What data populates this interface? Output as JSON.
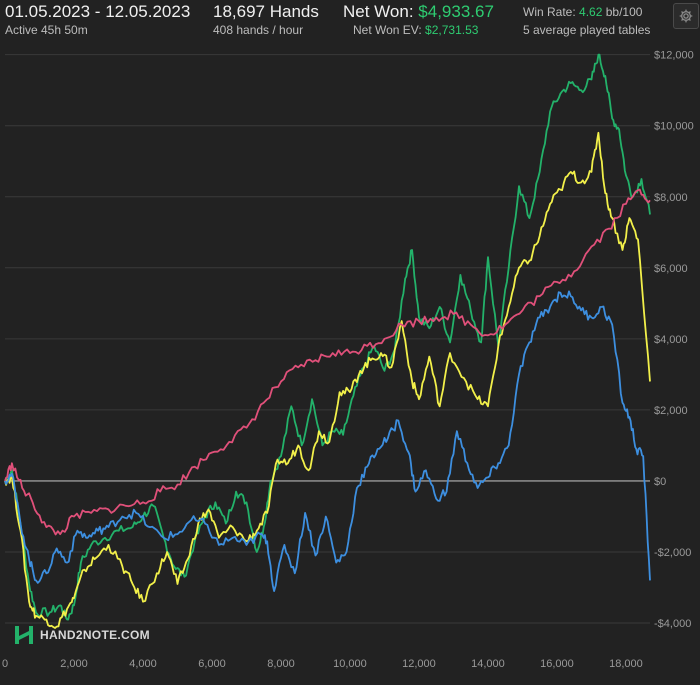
{
  "header": {
    "date_range": "01.05.2023 - 12.05.2023",
    "active_time": "Active 45h 50m",
    "hands": "18,697 Hands",
    "hands_per_hour": "408 hands / hour",
    "net_won_label": "Net Won:",
    "net_won_value": "$4,933.67",
    "net_won_ev_label": "Net Won  EV:",
    "net_won_ev_value": "$2,731.53",
    "win_rate_label": "Win Rate:",
    "win_rate_value": "4.62",
    "win_rate_unit": "bb/100",
    "tables": "5 average played tables"
  },
  "icons": {
    "settings": "gear-icon",
    "logo": "hand2note-logo-icon"
  },
  "logo": {
    "text": "HAND2NOTE.COM"
  },
  "colors": {
    "background": "#222222",
    "green": "#23b26a",
    "yellow": "#f2f04a",
    "pink": "#e0507a",
    "blue": "#3d8fe0",
    "zero_line": "#9a9a9a",
    "grid": "#3a3a3a"
  },
  "chart_data": {
    "type": "line",
    "xlim": [
      0,
      18697
    ],
    "ylim": [
      -4900,
      12300
    ],
    "x_ticks": [
      0,
      2000,
      4000,
      6000,
      8000,
      10000,
      12000,
      14000,
      16000,
      18000
    ],
    "x_tick_labels": [
      "0",
      "2,000",
      "4,000",
      "6,000",
      "8,000",
      "10,000",
      "12,000",
      "14,000",
      "16,000",
      "18,000"
    ],
    "y_ticks": [
      12000,
      10000,
      8000,
      6000,
      4000,
      2000,
      0,
      -2000,
      -4000
    ],
    "y_tick_labels": [
      "$12,000",
      "$10,000",
      "$8,000",
      "$6,000",
      "$4,000",
      "$2,000",
      "$0",
      "-$2,000",
      "-$4,000"
    ],
    "grid": true,
    "series": [
      {
        "color": "#23b26a",
        "points": [
          [
            0,
            0
          ],
          [
            200,
            300
          ],
          [
            450,
            -1200
          ],
          [
            700,
            -2900
          ],
          [
            900,
            -3700
          ],
          [
            1300,
            -3700
          ],
          [
            1600,
            -3500
          ],
          [
            1800,
            -3900
          ],
          [
            2000,
            -3500
          ],
          [
            2200,
            -2300
          ],
          [
            2500,
            -1800
          ],
          [
            2900,
            -1600
          ],
          [
            3300,
            -1400
          ],
          [
            3700,
            -1300
          ],
          [
            4000,
            -1000
          ],
          [
            4300,
            -700
          ],
          [
            4600,
            -1600
          ],
          [
            4900,
            -2400
          ],
          [
            5200,
            -2700
          ],
          [
            5500,
            -1700
          ],
          [
            5800,
            -1000
          ],
          [
            6100,
            -600
          ],
          [
            6400,
            -1200
          ],
          [
            6700,
            -300
          ],
          [
            7000,
            -600
          ],
          [
            7300,
            -2000
          ],
          [
            7500,
            -1300
          ],
          [
            7700,
            0
          ],
          [
            8000,
            700
          ],
          [
            8300,
            2100
          ],
          [
            8600,
            1000
          ],
          [
            8900,
            2300
          ],
          [
            9200,
            1000
          ],
          [
            9500,
            1400
          ],
          [
            9800,
            1300
          ],
          [
            10100,
            2400
          ],
          [
            10400,
            3200
          ],
          [
            10700,
            3800
          ],
          [
            11000,
            3100
          ],
          [
            11300,
            3700
          ],
          [
            11600,
            5700
          ],
          [
            11800,
            6500
          ],
          [
            12000,
            4600
          ],
          [
            12300,
            4300
          ],
          [
            12600,
            4900
          ],
          [
            12900,
            3900
          ],
          [
            13200,
            5800
          ],
          [
            13500,
            4800
          ],
          [
            13800,
            3900
          ],
          [
            14000,
            6300
          ],
          [
            14300,
            3800
          ],
          [
            14600,
            6000
          ],
          [
            14900,
            8300
          ],
          [
            15200,
            7400
          ],
          [
            15500,
            8700
          ],
          [
            15800,
            10400
          ],
          [
            16100,
            10900
          ],
          [
            16400,
            11200
          ],
          [
            16700,
            11000
          ],
          [
            17000,
            11300
          ],
          [
            17200,
            12000
          ],
          [
            17400,
            11400
          ],
          [
            17600,
            10200
          ],
          [
            17800,
            9900
          ],
          [
            18000,
            8600
          ],
          [
            18200,
            8000
          ],
          [
            18450,
            8500
          ],
          [
            18697,
            7500
          ]
        ]
      },
      {
        "color": "#f2f04a",
        "points": [
          [
            0,
            0
          ],
          [
            200,
            100
          ],
          [
            450,
            -1400
          ],
          [
            700,
            -3400
          ],
          [
            900,
            -3800
          ],
          [
            1200,
            -3900
          ],
          [
            1500,
            -4100
          ],
          [
            1800,
            -3600
          ],
          [
            2000,
            -3300
          ],
          [
            2300,
            -2500
          ],
          [
            2600,
            -2200
          ],
          [
            3000,
            -1800
          ],
          [
            3400,
            -2400
          ],
          [
            3700,
            -2900
          ],
          [
            4000,
            -3400
          ],
          [
            4400,
            -2600
          ],
          [
            4700,
            -2000
          ],
          [
            5000,
            -2900
          ],
          [
            5300,
            -2200
          ],
          [
            5600,
            -1200
          ],
          [
            5900,
            -800
          ],
          [
            6200,
            -1600
          ],
          [
            6600,
            -1300
          ],
          [
            7000,
            -1700
          ],
          [
            7300,
            -1400
          ],
          [
            7600,
            -900
          ],
          [
            7900,
            600
          ],
          [
            8200,
            500
          ],
          [
            8500,
            1000
          ],
          [
            8800,
            300
          ],
          [
            9100,
            1400
          ],
          [
            9400,
            1100
          ],
          [
            9700,
            2500
          ],
          [
            10000,
            2500
          ],
          [
            10300,
            3100
          ],
          [
            10600,
            3400
          ],
          [
            10900,
            3600
          ],
          [
            11200,
            3200
          ],
          [
            11500,
            4500
          ],
          [
            11800,
            2800
          ],
          [
            12000,
            2300
          ],
          [
            12300,
            3500
          ],
          [
            12600,
            2100
          ],
          [
            12900,
            3600
          ],
          [
            13300,
            2900
          ],
          [
            13700,
            2300
          ],
          [
            14000,
            2100
          ],
          [
            14300,
            3800
          ],
          [
            14600,
            4900
          ],
          [
            14900,
            6000
          ],
          [
            15200,
            6200
          ],
          [
            15500,
            6900
          ],
          [
            15800,
            7800
          ],
          [
            16100,
            8200
          ],
          [
            16400,
            8700
          ],
          [
            16700,
            8400
          ],
          [
            17000,
            8700
          ],
          [
            17200,
            9800
          ],
          [
            17400,
            8100
          ],
          [
            17600,
            7400
          ],
          [
            17900,
            6500
          ],
          [
            18100,
            7400
          ],
          [
            18350,
            6800
          ],
          [
            18697,
            2800
          ]
        ]
      },
      {
        "color": "#e0507a",
        "points": [
          [
            0,
            0
          ],
          [
            200,
            500
          ],
          [
            500,
            -200
          ],
          [
            800,
            -600
          ],
          [
            1200,
            -1300
          ],
          [
            1600,
            -1500
          ],
          [
            2000,
            -1000
          ],
          [
            2500,
            -900
          ],
          [
            3000,
            -800
          ],
          [
            3500,
            -700
          ],
          [
            4000,
            -600
          ],
          [
            4500,
            -300
          ],
          [
            5000,
            -100
          ],
          [
            5500,
            400
          ],
          [
            6000,
            800
          ],
          [
            6500,
            1100
          ],
          [
            7000,
            1500
          ],
          [
            7500,
            2200
          ],
          [
            8000,
            2800
          ],
          [
            8500,
            3200
          ],
          [
            9000,
            3400
          ],
          [
            9500,
            3600
          ],
          [
            10000,
            3600
          ],
          [
            10500,
            3800
          ],
          [
            11000,
            4000
          ],
          [
            11500,
            4400
          ],
          [
            12000,
            4500
          ],
          [
            12500,
            4600
          ],
          [
            13000,
            4700
          ],
          [
            13500,
            4400
          ],
          [
            14000,
            4100
          ],
          [
            14500,
            4400
          ],
          [
            15000,
            4800
          ],
          [
            15500,
            5200
          ],
          [
            16000,
            5600
          ],
          [
            16500,
            5900
          ],
          [
            17000,
            6600
          ],
          [
            17500,
            7100
          ],
          [
            18000,
            7800
          ],
          [
            18400,
            8200
          ],
          [
            18697,
            7900
          ]
        ]
      },
      {
        "color": "#3d8fe0",
        "points": [
          [
            0,
            0
          ],
          [
            200,
            200
          ],
          [
            450,
            -1200
          ],
          [
            700,
            -2200
          ],
          [
            900,
            -2800
          ],
          [
            1200,
            -2600
          ],
          [
            1500,
            -1900
          ],
          [
            1800,
            -2300
          ],
          [
            2100,
            -1400
          ],
          [
            2400,
            -1600
          ],
          [
            2700,
            -1400
          ],
          [
            3000,
            -1300
          ],
          [
            3400,
            -1000
          ],
          [
            3800,
            -900
          ],
          [
            4200,
            -1300
          ],
          [
            4600,
            -1600
          ],
          [
            5000,
            -1500
          ],
          [
            5400,
            -1100
          ],
          [
            5800,
            -1200
          ],
          [
            6200,
            -1800
          ],
          [
            6600,
            -1600
          ],
          [
            7000,
            -1800
          ],
          [
            7400,
            -1500
          ],
          [
            7600,
            -1700
          ],
          [
            7800,
            -3100
          ],
          [
            8100,
            -1800
          ],
          [
            8400,
            -2600
          ],
          [
            8700,
            -900
          ],
          [
            9000,
            -2100
          ],
          [
            9300,
            -1000
          ],
          [
            9600,
            -2300
          ],
          [
            9900,
            -2000
          ],
          [
            10200,
            -200
          ],
          [
            10500,
            400
          ],
          [
            10800,
            900
          ],
          [
            11100,
            1200
          ],
          [
            11400,
            1700
          ],
          [
            11700,
            800
          ],
          [
            11900,
            -300
          ],
          [
            12200,
            300
          ],
          [
            12500,
            -500
          ],
          [
            12800,
            -300
          ],
          [
            13100,
            1400
          ],
          [
            13400,
            500
          ],
          [
            13700,
            -200
          ],
          [
            14000,
            100
          ],
          [
            14300,
            500
          ],
          [
            14600,
            1000
          ],
          [
            14900,
            3000
          ],
          [
            15200,
            3900
          ],
          [
            15500,
            4600
          ],
          [
            15800,
            4900
          ],
          [
            16100,
            5300
          ],
          [
            16400,
            5200
          ],
          [
            16700,
            4800
          ],
          [
            17000,
            4600
          ],
          [
            17300,
            4900
          ],
          [
            17600,
            4400
          ],
          [
            17900,
            2200
          ],
          [
            18100,
            1800
          ],
          [
            18300,
            900
          ],
          [
            18500,
            700
          ],
          [
            18697,
            -2800
          ]
        ]
      }
    ]
  }
}
